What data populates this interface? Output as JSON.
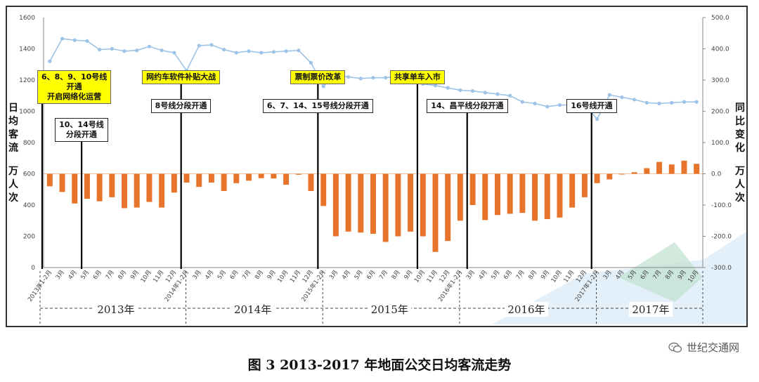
{
  "caption": "图 3 2013-2017 年地面公交日均客流走势",
  "watermark": {
    "text": "世纪交通网",
    "icon": "wechat-icon"
  },
  "left_axis_label": "日均客流万人次",
  "right_axis_label": "同比变化万人次",
  "colors": {
    "bar": "#e8732a",
    "line": "#9dc3e6",
    "marker": "#9dc3e6",
    "yellow_box": "#ffff00"
  },
  "chart_data": {
    "type": "bar",
    "x": [
      "2013年1-2月",
      "3月",
      "4月",
      "5月",
      "6月",
      "7月",
      "8月",
      "9月",
      "10月",
      "11月",
      "12月",
      "2014年1-2月",
      "3月",
      "4月",
      "5月",
      "6月",
      "7月",
      "8月",
      "9月",
      "10月",
      "11月",
      "12月",
      "2015年1-2月",
      "3月",
      "4月",
      "5月",
      "6月",
      "7月",
      "8月",
      "9月",
      "10月",
      "11月",
      "12月",
      "2016年1-2月",
      "3月",
      "4月",
      "5月",
      "6月",
      "7月",
      "8月",
      "9月",
      "10月",
      "11月",
      "12月",
      "2017年1-2月",
      "3月",
      "4月",
      "5月",
      "6月",
      "7月",
      "8月",
      "9月",
      "10月"
    ],
    "series": [
      {
        "type": "line",
        "axis": "left",
        "values": [
          1320,
          1465,
          1455,
          1450,
          1395,
          1400,
          1385,
          1390,
          1415,
          1390,
          1375,
          1260,
          1420,
          1425,
          1395,
          1375,
          1385,
          1375,
          1380,
          1385,
          1390,
          1310,
          1160,
          1230,
          1220,
          1210,
          1215,
          1215,
          1225,
          1190,
          1175,
          1165,
          1150,
          1135,
          1130,
          1120,
          1110,
          1100,
          1060,
          1050,
          1030,
          1040,
          1040,
          1045,
          950,
          1105,
          1090,
          1075,
          1055,
          1050,
          1055,
          1060,
          1060
        ]
      },
      {
        "type": "bar",
        "axis": "right",
        "values": [
          -40,
          -58,
          -95,
          -80,
          -88,
          -75,
          -110,
          -108,
          -90,
          -108,
          -60,
          -28,
          -42,
          -28,
          -55,
          -30,
          -22,
          -14,
          -15,
          -35,
          -3,
          -55,
          -103,
          -200,
          -185,
          -188,
          -192,
          -218,
          -200,
          -185,
          -200,
          -250,
          -215,
          -150,
          -100,
          -148,
          -132,
          -128,
          -125,
          -150,
          -145,
          -140,
          -108,
          -75,
          -30,
          -18,
          -2,
          5,
          18,
          38,
          30,
          42,
          32
        ]
      }
    ],
    "left_axis": {
      "range": [
        0,
        1600
      ],
      "ticks": [
        "0",
        "200",
        "400",
        "600",
        "800",
        "1000",
        "1200",
        "1400",
        "1600"
      ]
    },
    "right_axis": {
      "range": [
        -300,
        500
      ],
      "ticks": [
        "-300.0",
        "-200.0",
        "-100.0",
        "0.0",
        "100.0",
        "200.0",
        "300.0",
        "400.0",
        "500.0"
      ]
    },
    "years": [
      {
        "label": "2013年",
        "from": 0,
        "to": 10
      },
      {
        "label": "2014年",
        "from": 11,
        "to": 21
      },
      {
        "label": "2015年",
        "from": 22,
        "to": 32
      },
      {
        "label": "2016年",
        "from": 33,
        "to": 43
      },
      {
        "label": "2017年",
        "from": 44,
        "to": 52
      }
    ],
    "events": [
      {
        "index": 0,
        "lines": [
          "6、8、9、10号线",
          "开通",
          "开启网络化运营"
        ],
        "style": "yellow",
        "top": "upper"
      },
      {
        "index": 3,
        "lines": [
          "10、14号线",
          "分段开通"
        ],
        "style": "white",
        "top": "lower"
      },
      {
        "index": 11,
        "lines": [
          "网约车软件补贴大战"
        ],
        "style": "yellow",
        "top": "upper"
      },
      {
        "index": 11,
        "lines": [
          "8号线分段开通"
        ],
        "style": "white",
        "top": "mid"
      },
      {
        "index": 22,
        "lines": [
          "票制票价改革"
        ],
        "style": "yellow",
        "top": "upper"
      },
      {
        "index": 22,
        "lines": [
          "6、7、14、15号线分段开通"
        ],
        "style": "white",
        "top": "mid"
      },
      {
        "index": 30,
        "lines": [
          "共享单车入市"
        ],
        "style": "yellow",
        "top": "upper"
      },
      {
        "index": 34,
        "lines": [
          "14、昌平线分段开通"
        ],
        "style": "white",
        "top": "mid"
      },
      {
        "index": 44,
        "lines": [
          "16号线开通"
        ],
        "style": "white",
        "top": "mid"
      }
    ]
  }
}
